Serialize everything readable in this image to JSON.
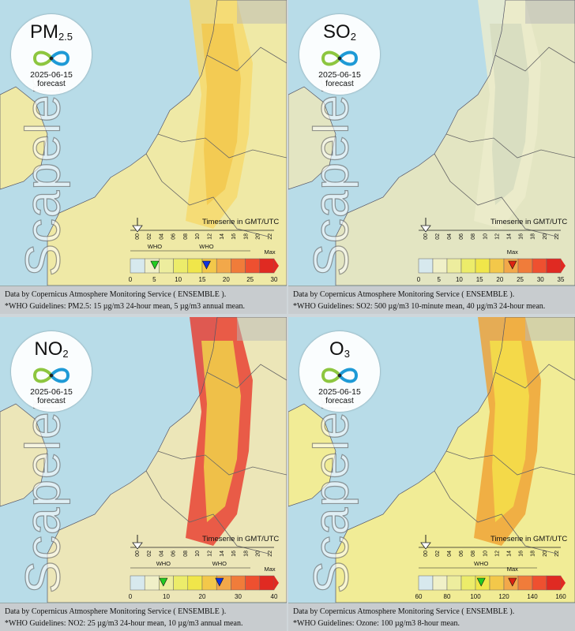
{
  "panels": [
    {
      "pollutant": "PM",
      "pollutant_sub": "2.5",
      "date": "2025-06-15",
      "forecast": "forecast",
      "brand": "Scapeler",
      "timeserie_label": "Timeserie in GMT/UTC",
      "hour_ticks": [
        "00",
        "02",
        "04",
        "06",
        "08",
        "10",
        "12",
        "14",
        "16",
        "18",
        "20",
        "22"
      ],
      "scale_ticks": [
        "0",
        "5",
        "10",
        "15",
        "20",
        "25",
        "30"
      ],
      "max_label": "Max",
      "who_labels": [
        "WHO",
        "WHO"
      ],
      "who_colors": [
        "#22cc22",
        "#1133dd"
      ],
      "source": "Data by Copernicus Atmosphere Monitoring Service ( ENSEMBLE ).",
      "guideline": "*WHO Guidelines: PM2.5: 15 µg/m3 24-hour mean, 5 µg/m3 annual mean.",
      "map_colors": {
        "base": "#efe9a6",
        "plume": "#f2c84e",
        "plume_edge": "#f6d86a"
      }
    },
    {
      "pollutant": "SO",
      "pollutant_sub": "2",
      "date": "2025-06-15",
      "forecast": "forecast",
      "brand": "Scapeler",
      "timeserie_label": "Timeserie in GMT/UTC",
      "hour_ticks": [
        "00",
        "02",
        "04",
        "06",
        "08",
        "10",
        "12",
        "14",
        "16",
        "18",
        "20",
        "22"
      ],
      "scale_ticks": [
        "0",
        "5",
        "10",
        "15",
        "20",
        "25",
        "30",
        "35"
      ],
      "max_label": "Max",
      "who_labels": [],
      "who_colors": [
        "#dd2211"
      ],
      "source": "Data by Copernicus Atmosphere Monitoring Service ( ENSEMBLE ).",
      "guideline": "*WHO Guidelines: SO2: 500 µg/m3 10-minute mean, 40 µg/m3 24-hour mean.",
      "map_colors": {
        "base": "#e3e5c2",
        "plume": "#d6dcc0",
        "plume_edge": "#ececcc"
      }
    },
    {
      "pollutant": "NO",
      "pollutant_sub": "2",
      "date": "2025-06-15",
      "forecast": "forecast",
      "brand": "Scapeler",
      "timeserie_label": "Timeserie in GMT/UTC",
      "hour_ticks": [
        "00",
        "02",
        "04",
        "06",
        "08",
        "10",
        "12",
        "14",
        "16",
        "18",
        "20",
        "22"
      ],
      "scale_ticks": [
        "0",
        "10",
        "20",
        "30",
        "40"
      ],
      "max_label": "Max",
      "who_labels": [
        "WHO",
        "WHO"
      ],
      "who_colors": [
        "#22cc22",
        "#1133dd"
      ],
      "source": "Data by Copernicus Atmosphere Monitoring Service ( ENSEMBLE ).",
      "guideline": "*WHO Guidelines: NO2: 25 µg/m3 24-hour mean, 10 µg/m3 annual mean.",
      "map_colors": {
        "base": "#ece6b8",
        "plume": "#f0d24a",
        "plume_edge": "#e8382a"
      }
    },
    {
      "pollutant": "O",
      "pollutant_sub": "3",
      "date": "2025-06-15",
      "forecast": "forecast",
      "brand": "Scapeler",
      "timeserie_label": "Timeserie in GMT/UTC",
      "hour_ticks": [
        "00",
        "02",
        "04",
        "06",
        "08",
        "10",
        "12",
        "14",
        "16",
        "18",
        "20",
        "22"
      ],
      "scale_ticks": [
        "60",
        "80",
        "100",
        "120",
        "140",
        "160"
      ],
      "max_label": "Max",
      "who_labels": [
        "WHO"
      ],
      "who_colors": [
        "#22cc22",
        "#dd2211"
      ],
      "source": "Data by Copernicus Atmosphere Monitoring Service ( ENSEMBLE ).",
      "guideline": "*WHO Guidelines: Ozone: 100 µg/m3 8-hour mean.",
      "map_colors": {
        "base": "#f1ec96",
        "plume": "#f4e04a",
        "plume_edge": "#f0a030"
      }
    }
  ]
}
